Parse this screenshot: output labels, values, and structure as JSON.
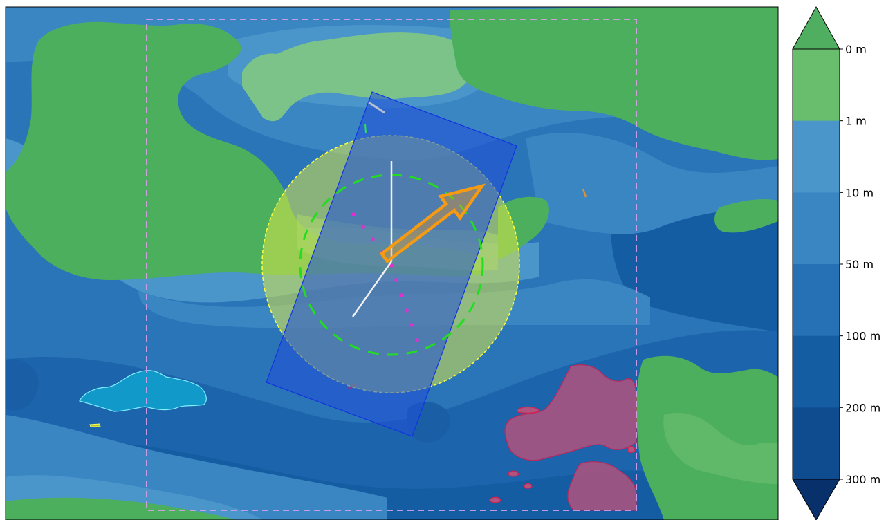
{
  "colorbar": {
    "levels": [
      {
        "label": "0 m",
        "color": "#4caf5e"
      },
      {
        "label": "1 m",
        "color": "#69be6e"
      },
      {
        "label": "10 m",
        "color": "#4a96cb"
      },
      {
        "label": "50 m",
        "color": "#3a86c3"
      },
      {
        "label": "100 m",
        "color": "#2670b5"
      },
      {
        "label": "200 m",
        "color": "#155da3"
      },
      {
        "label": "300 m",
        "color": "#0f4b8f"
      }
    ],
    "extend_top_color": "#4fae60",
    "extend_bottom_color": "#08306b"
  },
  "colors": {
    "land": "#4caf5e",
    "land_light": "#7cc38a",
    "shallow": "#4a96cb",
    "mid": "#3a86c3",
    "deep": "#2670b5",
    "deeper": "#155da3",
    "deepest": "#0f4b8f",
    "cyan_patch": "#1199c9",
    "red_patch": "#b0537e",
    "blue_rect": "#1f4fd8",
    "yellow_circle": "#d9e84a",
    "arrow": "#f59a13",
    "green_dash": "#22dd22",
    "magenta_dots": "#e030d0",
    "pink_dash": "#d8a0e8"
  }
}
